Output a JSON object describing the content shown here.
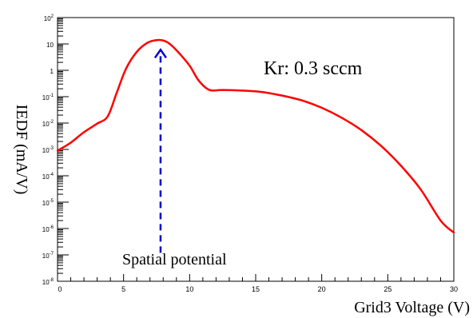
{
  "chart_data": {
    "type": "line",
    "title": "",
    "xlabel": "Grid3 Voltage (V)",
    "ylabel": "IEDF (mA/V)",
    "xlim": [
      0,
      30
    ],
    "ylim": [
      1e-08,
      100
    ],
    "yscale": "log",
    "grid": false,
    "legend": "none",
    "x_ticks": [
      0,
      5,
      10,
      15,
      20,
      25,
      30
    ],
    "x_tick_labels": [
      "0",
      "5",
      "10",
      "15",
      "20",
      "25",
      "30"
    ],
    "y_ticks": [
      1e-08,
      1e-07,
      1e-06,
      1e-05,
      0.0001,
      0.001,
      0.01,
      0.1,
      1,
      10,
      100
    ],
    "y_tick_labels": [
      {
        "base": "10",
        "exp": "-8"
      },
      {
        "base": "10",
        "exp": "-7"
      },
      {
        "base": "10",
        "exp": "-6"
      },
      {
        "base": "10",
        "exp": "-5"
      },
      {
        "base": "10",
        "exp": "-4"
      },
      {
        "base": "10",
        "exp": "-3"
      },
      {
        "base": "10",
        "exp": "-2"
      },
      {
        "base": "10",
        "exp": "-1"
      },
      {
        "base": "1",
        "exp": ""
      },
      {
        "base": "10",
        "exp": ""
      },
      {
        "base": "10",
        "exp": "2"
      }
    ],
    "series": [
      {
        "color": "#ff0000",
        "x": [
          0,
          1,
          2,
          3,
          3.8,
          4.5,
          5.2,
          6,
          6.8,
          7.5,
          8,
          8.5,
          9.2,
          10,
          10.7,
          11.5,
          12.5,
          14,
          15.5,
          17,
          18.5,
          20,
          21.5,
          23,
          24.5,
          26,
          27.5,
          29,
          30
        ],
        "y": [
          0.0009,
          0.0018,
          0.0045,
          0.0095,
          0.018,
          0.15,
          1.2,
          5,
          11,
          14,
          13.5,
          10,
          4.5,
          1.5,
          0.4,
          0.18,
          0.18,
          0.17,
          0.15,
          0.11,
          0.072,
          0.038,
          0.016,
          0.0054,
          0.00135,
          0.00024,
          3e-05,
          2e-06,
          7e-07
        ]
      }
    ],
    "annotations": [
      {
        "text": "Kr: 0.3 sccm"
      },
      {
        "text": "Spatial potential"
      }
    ],
    "arrow": {
      "x": 7.8,
      "y_from": 1.2e-07,
      "y_to": 6,
      "color": "#0000cc"
    }
  }
}
